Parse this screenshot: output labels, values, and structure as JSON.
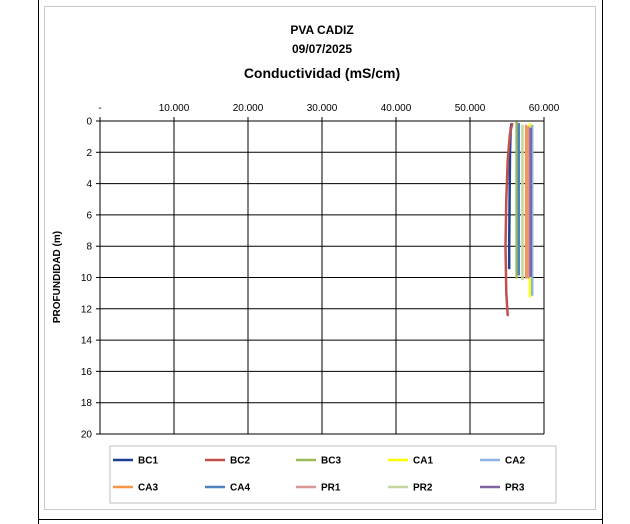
{
  "chart_data": {
    "type": "line",
    "title": "PVA CADIZ",
    "subtitle": "09/07/2025",
    "heading": "Conductividad (mS/cm)",
    "ylabel": "PROFUNDIDAD (m)",
    "xlim": [
      0,
      60000
    ],
    "ylim": [
      0,
      20
    ],
    "y_inverted": true,
    "x_axis_position": "top",
    "x_ticks": [
      {
        "value": 0,
        "label": "-"
      },
      {
        "value": 10000,
        "label": "10.000"
      },
      {
        "value": 20000,
        "label": "20.000"
      },
      {
        "value": 30000,
        "label": "30.000"
      },
      {
        "value": 40000,
        "label": "40.000"
      },
      {
        "value": 50000,
        "label": "50.000"
      },
      {
        "value": 60000,
        "label": "60.000"
      }
    ],
    "y_ticks": [
      0,
      2,
      4,
      6,
      8,
      10,
      12,
      14,
      16,
      18,
      20
    ],
    "grid": true,
    "legend_position": "bottom",
    "series": [
      {
        "name": "BC1",
        "color": "#1f3f8f",
        "points": [
          [
            55600,
            0.2
          ],
          [
            55500,
            0.5
          ],
          [
            55400,
            2
          ],
          [
            55350,
            5
          ],
          [
            55300,
            8
          ],
          [
            55300,
            9.4
          ]
        ]
      },
      {
        "name": "BC2",
        "color": "#c0504d",
        "points": [
          [
            55700,
            0.2
          ],
          [
            55400,
            0.8
          ],
          [
            55100,
            2.5
          ],
          [
            54900,
            5
          ],
          [
            54800,
            8
          ],
          [
            54900,
            11
          ],
          [
            55100,
            12.4
          ]
        ]
      },
      {
        "name": "BC3",
        "color": "#9bbb59",
        "points": [
          [
            56300,
            0.1
          ],
          [
            56300,
            4
          ],
          [
            56300,
            8
          ],
          [
            56300,
            10
          ]
        ]
      },
      {
        "name": "CA1",
        "color": "#ffff00",
        "points": [
          [
            58100,
            0.2
          ],
          [
            58100,
            5
          ],
          [
            58100,
            10
          ],
          [
            58100,
            11.2
          ]
        ]
      },
      {
        "name": "CA2",
        "color": "#8eb4e3",
        "points": [
          [
            58400,
            0.3
          ],
          [
            58400,
            5
          ],
          [
            58400,
            10
          ],
          [
            58400,
            11.1
          ]
        ]
      },
      {
        "name": "CA3",
        "color": "#f79646",
        "points": [
          [
            57600,
            0.3
          ],
          [
            57600,
            5
          ],
          [
            57600,
            10
          ]
        ]
      },
      {
        "name": "CA4",
        "color": "#4f81bd",
        "points": [
          [
            56600,
            0.2
          ],
          [
            56600,
            5
          ],
          [
            56600,
            9.8
          ]
        ]
      },
      {
        "name": "PR1",
        "color": "#d99694",
        "points": [
          [
            57900,
            0.4
          ],
          [
            57900,
            5
          ],
          [
            57900,
            10
          ]
        ]
      },
      {
        "name": "PR2",
        "color": "#c3d69b",
        "points": [
          [
            57100,
            0.3
          ],
          [
            57100,
            5
          ],
          [
            57100,
            10.1
          ]
        ]
      },
      {
        "name": "PR3",
        "color": "#8064a2",
        "points": [
          [
            58200,
            0.5
          ],
          [
            58200,
            5
          ],
          [
            58200,
            9.9
          ]
        ]
      }
    ]
  }
}
